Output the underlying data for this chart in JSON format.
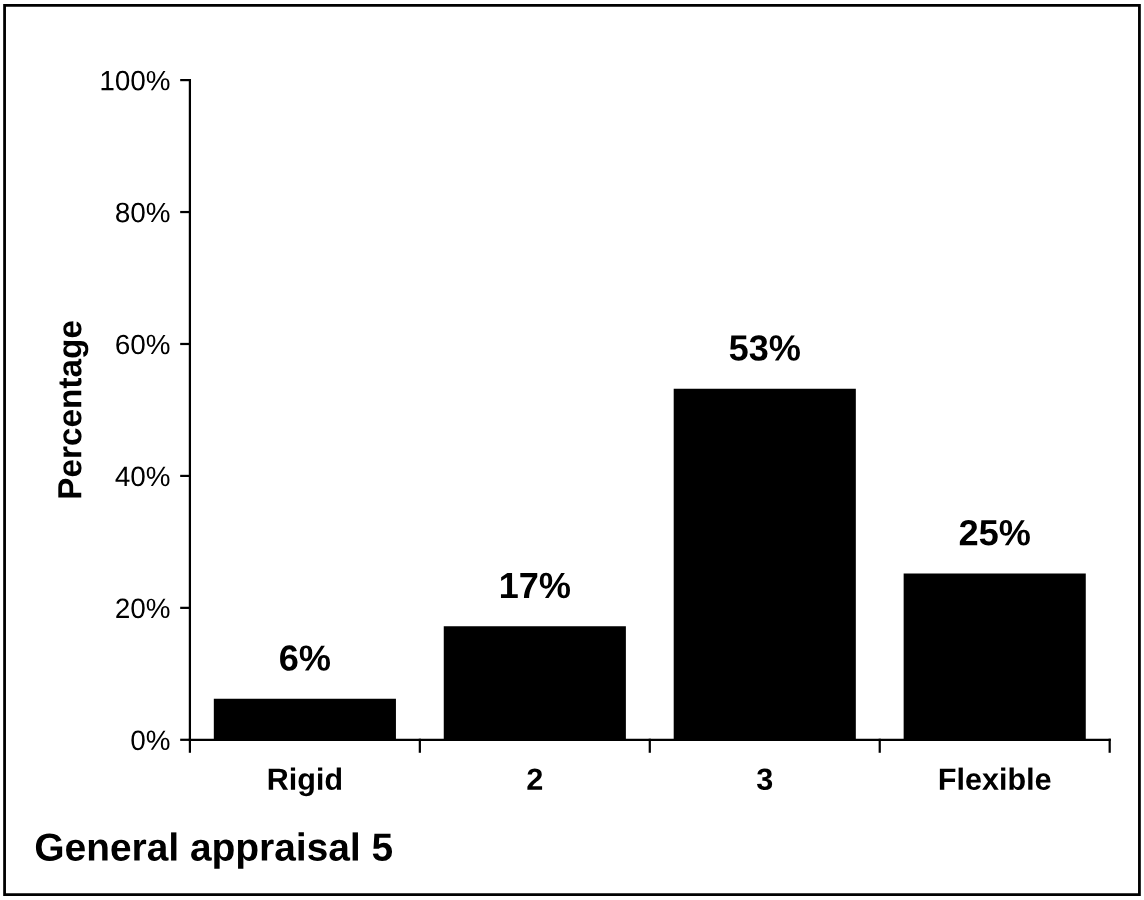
{
  "chart_data": {
    "type": "bar",
    "title": "General appraisal 5",
    "ylabel": "Percentage",
    "categories": [
      "Rigid",
      "2",
      "3",
      "Flexible"
    ],
    "values": [
      6,
      17,
      53,
      25
    ],
    "color": "#000000",
    "value_labels": [
      "6%",
      "17%",
      "53%",
      "25%"
    ],
    "ylim": [
      0,
      100
    ],
    "yticks": [
      {
        "value": 0,
        "label": "0%"
      },
      {
        "value": 20,
        "label": "20%"
      },
      {
        "value": 40,
        "label": "40%"
      },
      {
        "value": 60,
        "label": "60%"
      },
      {
        "value": 80,
        "label": "80%"
      },
      {
        "value": 100,
        "label": "100%"
      }
    ],
    "grid": false,
    "legend": false
  }
}
